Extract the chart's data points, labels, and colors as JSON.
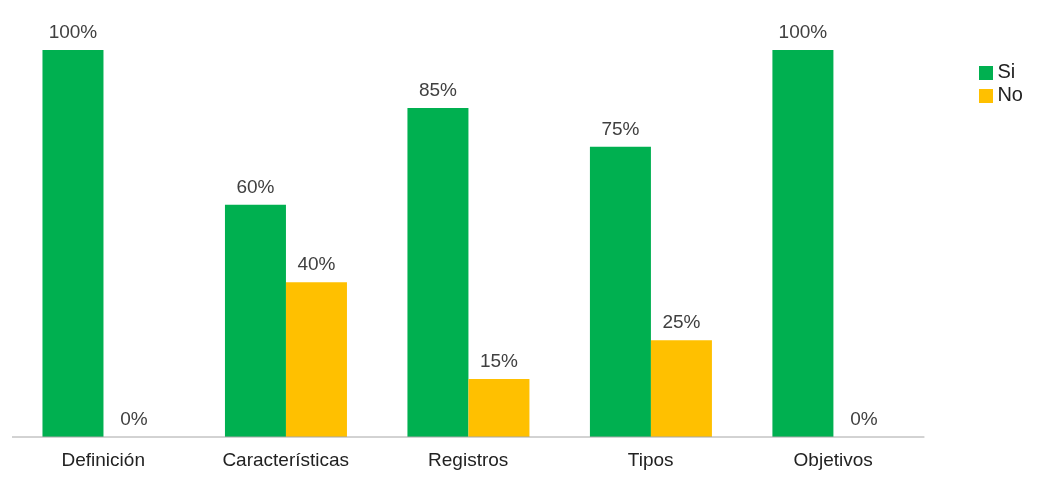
{
  "chart_data": {
    "type": "bar",
    "categories": [
      "Definición",
      "Características",
      "Registros",
      "Tipos",
      "Objetivos"
    ],
    "series": [
      {
        "name": "Si",
        "color": "#00b050",
        "values": [
          100,
          60,
          85,
          75,
          100
        ],
        "value_labels": [
          "100%",
          "60%",
          "85%",
          "75%",
          "100%"
        ]
      },
      {
        "name": "No",
        "color": "#ffc000",
        "values": [
          0,
          40,
          15,
          25,
          0
        ],
        "value_labels": [
          "0%",
          "40%",
          "15%",
          "25%",
          "0%"
        ]
      }
    ],
    "legend": "top right",
    "grid": false
  }
}
